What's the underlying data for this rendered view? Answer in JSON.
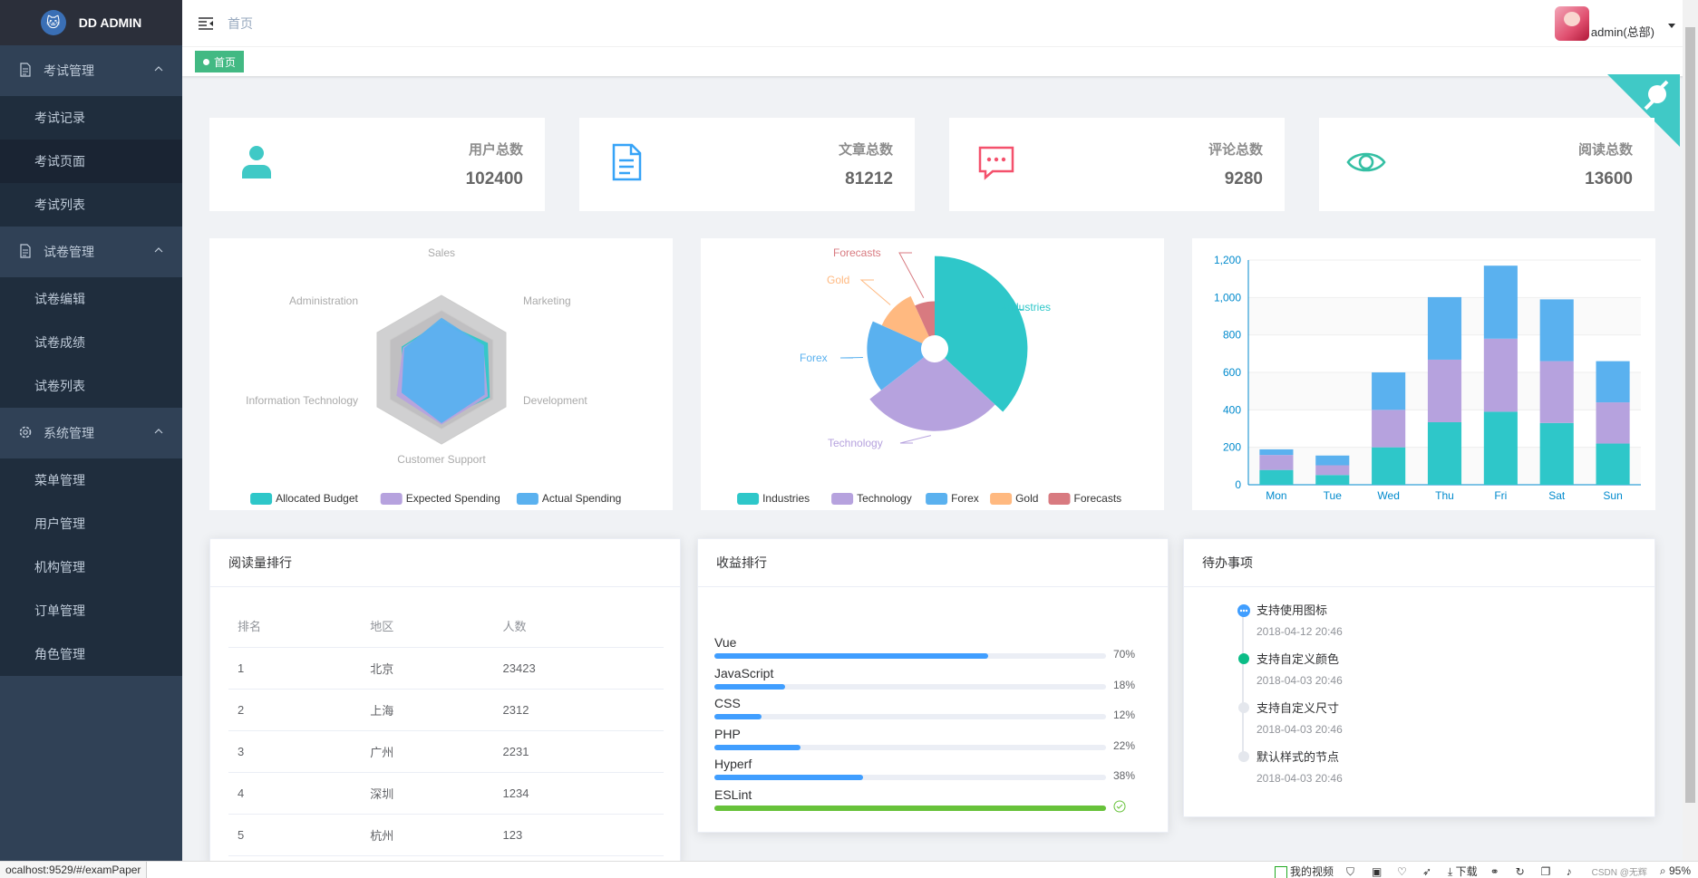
{
  "sidebar": {
    "title": "DD ADMIN",
    "groups": [
      {
        "label": "考试管理",
        "icon": "document-icon",
        "items": [
          "考试记录",
          "考试页面",
          "考试列表"
        ]
      },
      {
        "label": "试卷管理",
        "icon": "document-icon",
        "items": [
          "试卷编辑",
          "试卷成绩",
          "试卷列表"
        ]
      },
      {
        "label": "系统管理",
        "icon": "gear-icon",
        "items": [
          "菜单管理",
          "用户管理",
          "机构管理",
          "订单管理",
          "角色管理"
        ]
      }
    ],
    "active_item": "考试页面"
  },
  "header": {
    "breadcrumb": "首页",
    "username": "admin(总部)"
  },
  "tags": [
    {
      "label": "首页"
    }
  ],
  "stats": [
    {
      "label": "用户总数",
      "value": "102400",
      "icon": "user-icon",
      "color": "#40c9c6"
    },
    {
      "label": "文章总数",
      "value": "81212",
      "icon": "document-icon",
      "color": "#36a3f7"
    },
    {
      "label": "评论总数",
      "value": "9280",
      "icon": "message-icon",
      "color": "#f4516c"
    },
    {
      "label": "阅读总数",
      "value": "13600",
      "icon": "eye-icon",
      "color": "#34bfa3"
    }
  ],
  "chart_data": [
    {
      "type": "radar",
      "indicators": [
        "Sales",
        "Marketing",
        "Development",
        "Customer Support",
        "Information Technology",
        "Administration"
      ],
      "series": [
        {
          "name": "Allocated Budget",
          "color": "#2ec7c9",
          "values": [
            0.65,
            0.72,
            0.75,
            0.68,
            0.6,
            0.62
          ]
        },
        {
          "name": "Expected Spending",
          "color": "#b6a2de",
          "values": [
            0.64,
            0.65,
            0.72,
            0.74,
            0.7,
            0.6
          ]
        },
        {
          "name": "Actual Spending",
          "color": "#5ab1ef",
          "values": [
            0.7,
            0.66,
            0.67,
            0.72,
            0.62,
            0.58
          ]
        }
      ]
    },
    {
      "type": "pie",
      "roseType": "radius",
      "slices": [
        {
          "name": "Industries",
          "color": "#2ec7c9",
          "value": 320
        },
        {
          "name": "Technology",
          "color": "#b6a2de",
          "value": 240
        },
        {
          "name": "Forex",
          "color": "#5ab1ef",
          "value": 149
        },
        {
          "name": "Gold",
          "color": "#ffb980",
          "value": 100
        },
        {
          "name": "Forecasts",
          "color": "#d87a80",
          "value": 59
        }
      ]
    },
    {
      "type": "bar",
      "stacked": true,
      "categories": [
        "Mon",
        "Tue",
        "Wed",
        "Thu",
        "Fri",
        "Sat",
        "Sun"
      ],
      "ylim": [
        0,
        1200
      ],
      "yticks": [
        "0",
        "200",
        "400",
        "600",
        "800",
        "1,000",
        "1,200"
      ],
      "series": [
        {
          "color": "#2ec7c9",
          "values": [
            79,
            52,
            200,
            334,
            390,
            330,
            220
          ]
        },
        {
          "color": "#b6a2de",
          "values": [
            80,
            52,
            200,
            334,
            390,
            330,
            220
          ]
        },
        {
          "color": "#5ab1ef",
          "values": [
            30,
            52,
            200,
            334,
            390,
            330,
            220
          ]
        }
      ]
    }
  ],
  "reading_rank": {
    "title": "阅读量排行",
    "columns": [
      "排名",
      "地区",
      "人数"
    ],
    "rows": [
      [
        "1",
        "北京",
        "23423"
      ],
      [
        "2",
        "上海",
        "2312"
      ],
      [
        "3",
        "广州",
        "2231"
      ],
      [
        "4",
        "深圳",
        "1234"
      ],
      [
        "5",
        "杭州",
        "123"
      ]
    ]
  },
  "income_rank": {
    "title": "收益排行",
    "items": [
      {
        "name": "Vue",
        "percent": 70,
        "label": "70%"
      },
      {
        "name": "JavaScript",
        "percent": 18,
        "label": "18%"
      },
      {
        "name": "CSS",
        "percent": 12,
        "label": "12%"
      },
      {
        "name": "PHP",
        "percent": 22,
        "label": "22%"
      },
      {
        "name": "Hyperf",
        "percent": 38,
        "label": "38%"
      },
      {
        "name": "ESLint",
        "percent": 100,
        "label": "",
        "status": "success"
      }
    ]
  },
  "todo": {
    "title": "待办事项",
    "items": [
      {
        "content": "支持使用图标",
        "time": "2018-04-12 20:46",
        "color": "#409eff",
        "icon": "more-icon"
      },
      {
        "content": "支持自定义颜色",
        "time": "2018-04-03 20:46",
        "color": "#0bbd87"
      },
      {
        "content": "支持自定义尺寸",
        "time": "2018-04-03 20:46",
        "color": "#e4e7ed"
      },
      {
        "content": "默认样式的节点",
        "time": "2018-04-03 20:46",
        "color": "#e4e7ed"
      }
    ]
  },
  "statusbar": {
    "url": "ocalhost:9529/#/examPaper",
    "video": "我的视频",
    "download": "下载",
    "watermark": "CSDN @无辉",
    "zoom": "95%"
  }
}
